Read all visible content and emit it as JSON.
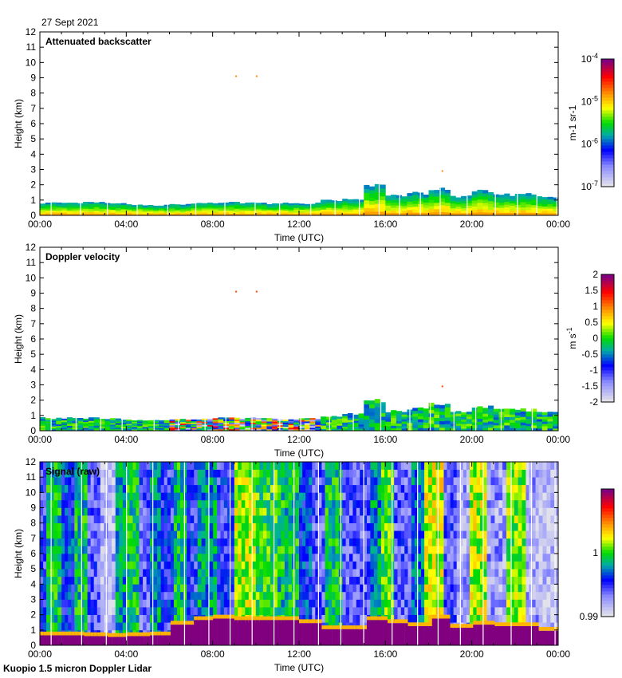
{
  "date_label": "27 Sept 2021",
  "footer": "Kuopio 1.5 micron Doppler Lidar",
  "chart_data": [
    {
      "type": "heatmap",
      "title": "Attenuated backscatter",
      "xlabel": "Time (UTC)",
      "ylabel": "Height (km)",
      "xticks": [
        "00:00",
        "04:00",
        "08:00",
        "12:00",
        "16:00",
        "20:00",
        "00:00"
      ],
      "yticks": [
        "0",
        "1",
        "2",
        "3",
        "4",
        "5",
        "6",
        "7",
        "8",
        "9",
        "10",
        "11",
        "12"
      ],
      "xlim_hours": [
        0,
        24
      ],
      "ylim_km": [
        0,
        12
      ],
      "colorbar": {
        "ticks": [
          "10-4",
          "10-5",
          "10-6",
          "10-7"
        ],
        "tick_labels": [
          {
            "base": "10",
            "exp": "-4"
          },
          {
            "base": "10",
            "exp": "-5"
          },
          {
            "base": "10",
            "exp": "-6"
          },
          {
            "base": "10",
            "exp": "-7"
          }
        ],
        "unit_label": "m-1 sr-1",
        "unit_parts": [
          "m",
          "-1",
          " sr",
          "-1"
        ],
        "scale": "log",
        "range": [
          1e-07,
          0.0001
        ]
      },
      "layer_top_km_hourly": [
        0.85,
        0.85,
        0.85,
        0.8,
        0.7,
        0.7,
        0.75,
        0.8,
        0.85,
        0.85,
        0.8,
        0.8,
        0.8,
        1.0,
        1.1,
        2.0,
        1.3,
        1.5,
        1.8,
        1.3,
        1.6,
        1.4,
        1.4,
        1.2
      ],
      "isolated_returns": [
        {
          "hour": 9.05,
          "km": 9.1
        },
        {
          "hour": 10.0,
          "km": 9.1
        },
        {
          "hour": 18.6,
          "km": 2.9
        }
      ]
    },
    {
      "type": "heatmap",
      "title": "Doppler velocity",
      "xlabel": "Time (UTC)",
      "ylabel": "Height (km)",
      "xticks": [
        "00:00",
        "04:00",
        "08:00",
        "12:00",
        "16:00",
        "20:00",
        "00:00"
      ],
      "yticks": [
        "0",
        "1",
        "2",
        "3",
        "4",
        "5",
        "6",
        "7",
        "8",
        "9",
        "10",
        "11",
        "12"
      ],
      "xlim_hours": [
        0,
        24
      ],
      "ylim_km": [
        0,
        12
      ],
      "colorbar": {
        "tick_labels": [
          "2",
          "1.5",
          "1",
          "0.5",
          "0",
          "-0.5",
          "-1",
          "-1.5",
          "-2"
        ],
        "unit_parts": [
          "m s",
          "-1"
        ],
        "range": [
          -2,
          2
        ]
      },
      "layer_top_km_hourly": [
        0.85,
        0.85,
        0.85,
        0.8,
        0.7,
        0.7,
        0.75,
        0.8,
        0.85,
        0.85,
        0.8,
        0.8,
        0.8,
        1.0,
        1.1,
        2.0,
        1.3,
        1.5,
        1.8,
        1.3,
        1.6,
        1.4,
        1.4,
        1.2
      ],
      "isolated_returns": [
        {
          "hour": 9.05,
          "km": 9.1
        },
        {
          "hour": 10.0,
          "km": 9.1
        },
        {
          "hour": 18.6,
          "km": 2.9
        }
      ]
    },
    {
      "type": "heatmap",
      "title": "Signal (raw)",
      "xlabel": "Time (UTC)",
      "ylabel": "Height (km)",
      "xticks": [
        "00:00",
        "04:00",
        "08:00",
        "12:00",
        "16:00",
        "20:00",
        "00:00"
      ],
      "yticks": [
        "0",
        "1",
        "2",
        "3",
        "4",
        "5",
        "6",
        "7",
        "8",
        "9",
        "10",
        "11",
        "12"
      ],
      "xlim_hours": [
        0,
        24
      ],
      "ylim_km": [
        0,
        12
      ],
      "colorbar": {
        "tick_labels": [
          "1",
          "0.99"
        ],
        "range": [
          0.99,
          1.01
        ]
      },
      "bands": [
        [
          0.0,
          0.3,
          0.25
        ],
        [
          0.3,
          1.0,
          0.45
        ],
        [
          1.0,
          1.6,
          0.3
        ],
        [
          1.6,
          2.2,
          0.45
        ],
        [
          2.2,
          2.8,
          0.2
        ],
        [
          2.8,
          3.5,
          0.08
        ],
        [
          3.5,
          4.0,
          0.4
        ],
        [
          4.0,
          4.6,
          0.45
        ],
        [
          4.6,
          5.1,
          0.2
        ],
        [
          5.1,
          5.6,
          0.4
        ],
        [
          5.6,
          6.2,
          0.25
        ],
        [
          6.2,
          6.8,
          0.45
        ],
        [
          6.8,
          7.3,
          0.25
        ],
        [
          7.3,
          8.2,
          0.4
        ],
        [
          8.2,
          9.0,
          0.25
        ],
        [
          9.0,
          10.0,
          0.58
        ],
        [
          10.0,
          11.0,
          0.5
        ],
        [
          11.0,
          12.0,
          0.45
        ],
        [
          12.0,
          12.6,
          0.3
        ],
        [
          12.6,
          13.2,
          0.2
        ],
        [
          13.2,
          14.0,
          0.45
        ],
        [
          14.0,
          15.3,
          0.2
        ],
        [
          15.3,
          15.8,
          0.4
        ],
        [
          15.8,
          16.4,
          0.5
        ],
        [
          16.4,
          17.2,
          0.2
        ],
        [
          17.2,
          17.8,
          0.35
        ],
        [
          17.8,
          18.7,
          0.6
        ],
        [
          18.7,
          19.3,
          0.2
        ],
        [
          19.3,
          19.9,
          0.1
        ],
        [
          19.9,
          20.7,
          0.58
        ],
        [
          20.7,
          21.6,
          0.12
        ],
        [
          21.6,
          22.5,
          0.55
        ],
        [
          22.5,
          23.1,
          0.1
        ],
        [
          23.1,
          24.0,
          0.05
        ]
      ],
      "boundary_layer_top_km_hourly": [
        0.9,
        0.9,
        0.85,
        0.8,
        0.85,
        0.9,
        1.6,
        1.9,
        2.0,
        1.9,
        1.9,
        1.9,
        1.7,
        1.3,
        1.3,
        1.9,
        1.7,
        1.5,
        2.0,
        1.4,
        1.6,
        1.5,
        1.5,
        1.2
      ]
    }
  ]
}
